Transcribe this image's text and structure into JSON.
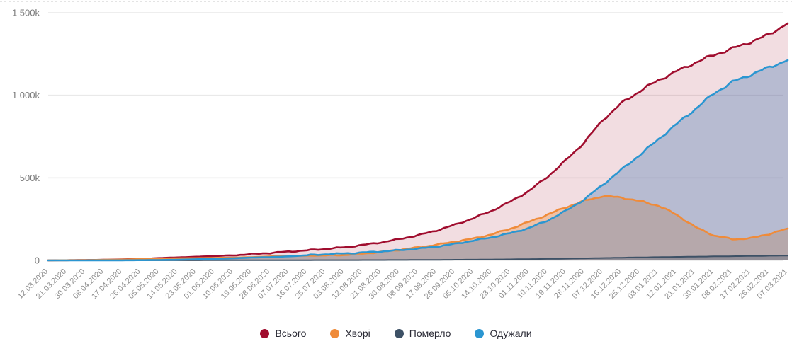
{
  "chart_data": {
    "type": "area",
    "title": "",
    "xlabel": "",
    "ylabel": "",
    "ylim": [
      0,
      1500
    ],
    "y_unit": "thousands",
    "grid": "horizontal",
    "legend_position": "bottom",
    "y_tick_values": [
      0,
      500,
      1000,
      1500
    ],
    "y_tick_labels": [
      "0",
      "500k",
      "1 000k",
      "1 500k"
    ],
    "x_tick_labels": [
      "12.03.2020",
      "21.03.2020",
      "30.03.2020",
      "08.04.2020",
      "17.04.2020",
      "26.04.2020",
      "05.05.2020",
      "14.05.2020",
      "23.05.2020",
      "01.06.2020",
      "10.06.2020",
      "19.06.2020",
      "28.06.2020",
      "07.07.2020",
      "16.07.2020",
      "25.07.2020",
      "03.08.2020",
      "12.08.2020",
      "21.08.2020",
      "30.08.2020",
      "08.09.2020",
      "17.09.2020",
      "26.09.2020",
      "05.10.2020",
      "14.10.2020",
      "23.10.2020",
      "01.11.2020",
      "10.11.2020",
      "19.11.2020",
      "28.11.2020",
      "07.12.2020",
      "16.12.2020",
      "25.12.2020",
      "03.01.2021",
      "12.01.2021",
      "21.01.2021",
      "30.01.2021",
      "08.02.2021",
      "17.02.2021",
      "26.02.2021",
      "07.03.2021"
    ],
    "series": [
      {
        "key": "total",
        "name": "Всього",
        "color": "#A00D2E",
        "fill": "rgba(160,13,46,0.14)",
        "values": [
          0.5,
          1,
          2,
          4,
          6,
          10,
          14,
          18,
          22,
          26,
          31,
          38,
          45,
          53,
          61,
          69,
          79,
          93,
          109,
          129,
          152,
          181,
          216,
          256,
          301,
          356,
          421,
          506,
          606,
          716,
          851,
          951,
          1026,
          1091,
          1146,
          1198,
          1244,
          1283,
          1323,
          1369,
          1436
        ]
      },
      {
        "key": "sick",
        "name": "Хворі",
        "color": "#EF8B3A",
        "fill": "rgba(239,139,58,0.35)",
        "values": [
          0.4,
          0.9,
          1.8,
          3.5,
          5,
          8,
          11,
          13,
          14,
          15,
          16.5,
          19.5,
          23.5,
          27.5,
          28.5,
          29.5,
          33,
          41,
          51,
          64,
          78,
          95,
          113,
          132,
          158,
          192,
          233,
          277,
          322,
          361,
          390,
          381,
          359,
          332,
          276,
          202,
          151,
          128,
          134,
          160,
          193
        ]
      },
      {
        "key": "died",
        "name": "Померло",
        "color": "#3D5166",
        "fill": "rgba(61,81,102,0.30)",
        "values": [
          0.01,
          0.02,
          0.05,
          0.1,
          0.15,
          0.25,
          0.35,
          0.5,
          0.6,
          0.75,
          0.9,
          1,
          1.15,
          1.3,
          1.45,
          1.6,
          1.8,
          2,
          2.3,
          2.6,
          3,
          3.5,
          4.1,
          4.8,
          5.6,
          6.6,
          7.8,
          9.2,
          10.8,
          12.5,
          14.5,
          16.5,
          18.2,
          19.8,
          21.3,
          22.8,
          24.2,
          25.5,
          26.6,
          27.8,
          29
        ]
      },
      {
        "key": "recovered",
        "name": "Одужали",
        "color": "#2B96D1",
        "fill": "rgba(74,122,181,0.35)",
        "values": [
          0.1,
          0.1,
          0.2,
          0.3,
          0.6,
          1.2,
          2.2,
          4,
          7,
          10,
          13,
          17,
          20,
          24,
          31,
          37,
          42,
          47,
          54,
          62,
          71,
          83,
          100,
          120,
          140,
          165,
          196,
          241,
          300,
          370,
          459,
          549,
          639,
          733,
          827,
          917,
          1011,
          1080,
          1125,
          1170,
          1213
        ]
      }
    ],
    "colors": {
      "gridline": "#e9e9e9",
      "top_dashed_line": "#dcdcdc",
      "y_tick_text": "#7a7a7a",
      "x_tick_text": "#8f8f8f",
      "legend_text": "#2b2b36"
    }
  }
}
